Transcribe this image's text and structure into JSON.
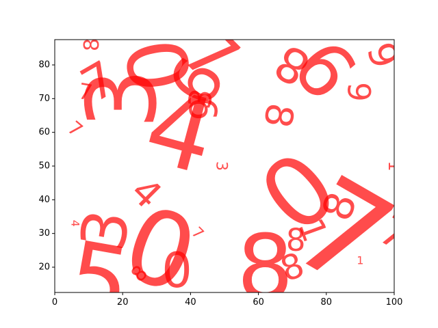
{
  "chart_data": {
    "type": "scatter",
    "title": "",
    "xlabel": "",
    "ylabel": "",
    "xlim": [
      0,
      100
    ],
    "ylim": [
      12.5,
      87.5
    ],
    "xticks": [
      0,
      20,
      40,
      60,
      80,
      100
    ],
    "yticks": [
      20,
      30,
      40,
      50,
      60,
      70,
      80
    ],
    "grid": false,
    "marker_color": "#ff0000",
    "marker_alpha": 0.7,
    "points": [
      {
        "x": 11,
        "y": 86,
        "label": "8",
        "size": 30,
        "rot": -90
      },
      {
        "x": 9,
        "y": 72,
        "label": "7",
        "size": 32,
        "rot": 10
      },
      {
        "x": 6,
        "y": 61,
        "label": "7",
        "size": 28,
        "rot": 40
      },
      {
        "x": 6,
        "y": 33,
        "label": "4",
        "size": 16,
        "rot": 90
      },
      {
        "x": 13,
        "y": 75,
        "label": "7",
        "size": 70,
        "rot": -30
      },
      {
        "x": 20,
        "y": 70,
        "label": "3",
        "size": 140,
        "rot": -90
      },
      {
        "x": 27,
        "y": 42,
        "label": "4",
        "size": 55,
        "rot": 45
      },
      {
        "x": 15,
        "y": 31,
        "label": "3",
        "size": 90,
        "rot": -80
      },
      {
        "x": 31,
        "y": 80,
        "label": "0",
        "size": 120,
        "rot": -100
      },
      {
        "x": 42,
        "y": 75,
        "label": "6",
        "size": 95,
        "rot": -60
      },
      {
        "x": 46,
        "y": 83,
        "label": "7",
        "size": 100,
        "rot": 45
      },
      {
        "x": 43,
        "y": 70,
        "label": "3",
        "size": 45,
        "rot": -80
      },
      {
        "x": 44,
        "y": 67,
        "label": "9",
        "size": 55,
        "rot": -90
      },
      {
        "x": 37,
        "y": 60,
        "label": "4",
        "size": 150,
        "rot": 15
      },
      {
        "x": 49,
        "y": 50,
        "label": "3",
        "size": 22,
        "rot": 90
      },
      {
        "x": 42,
        "y": 30,
        "label": "7",
        "size": 22,
        "rot": 45
      },
      {
        "x": 25,
        "y": 18,
        "label": "8",
        "size": 30,
        "rot": -45
      },
      {
        "x": 13,
        "y": 16,
        "label": "5",
        "size": 140,
        "rot": 10
      },
      {
        "x": 31,
        "y": 25,
        "label": "0",
        "size": 150,
        "rot": 20
      },
      {
        "x": 36,
        "y": 19,
        "label": "0",
        "size": 70,
        "rot": 0
      },
      {
        "x": 70,
        "y": 80,
        "label": "8",
        "size": 70,
        "rot": -150
      },
      {
        "x": 80,
        "y": 79,
        "label": "9",
        "size": 110,
        "rot": -130
      },
      {
        "x": 90,
        "y": 72,
        "label": "6",
        "size": 45,
        "rot": -90
      },
      {
        "x": 97,
        "y": 83,
        "label": "6",
        "size": 55,
        "rot": -110
      },
      {
        "x": 66,
        "y": 65,
        "label": "8",
        "size": 55,
        "rot": 100
      },
      {
        "x": 100,
        "y": 50,
        "label": "1",
        "size": 24,
        "rot": 90
      },
      {
        "x": 72,
        "y": 42,
        "label": "0",
        "size": 140,
        "rot": -40
      },
      {
        "x": 84,
        "y": 38,
        "label": "8",
        "size": 60,
        "rot": -70
      },
      {
        "x": 76,
        "y": 31,
        "label": "1",
        "size": 50,
        "rot": 70
      },
      {
        "x": 85,
        "y": 30,
        "label": "7",
        "size": 190,
        "rot": 30
      },
      {
        "x": 100,
        "y": 30,
        "label": "7",
        "size": 60,
        "rot": 30
      },
      {
        "x": 71,
        "y": 28,
        "label": "8",
        "size": 45,
        "rot": 0
      },
      {
        "x": 62,
        "y": 20,
        "label": "8",
        "size": 130,
        "rot": 0
      },
      {
        "x": 70,
        "y": 20,
        "label": "8",
        "size": 50,
        "rot": -20
      },
      {
        "x": 90,
        "y": 22,
        "label": "1",
        "size": 16,
        "rot": 0
      }
    ]
  }
}
